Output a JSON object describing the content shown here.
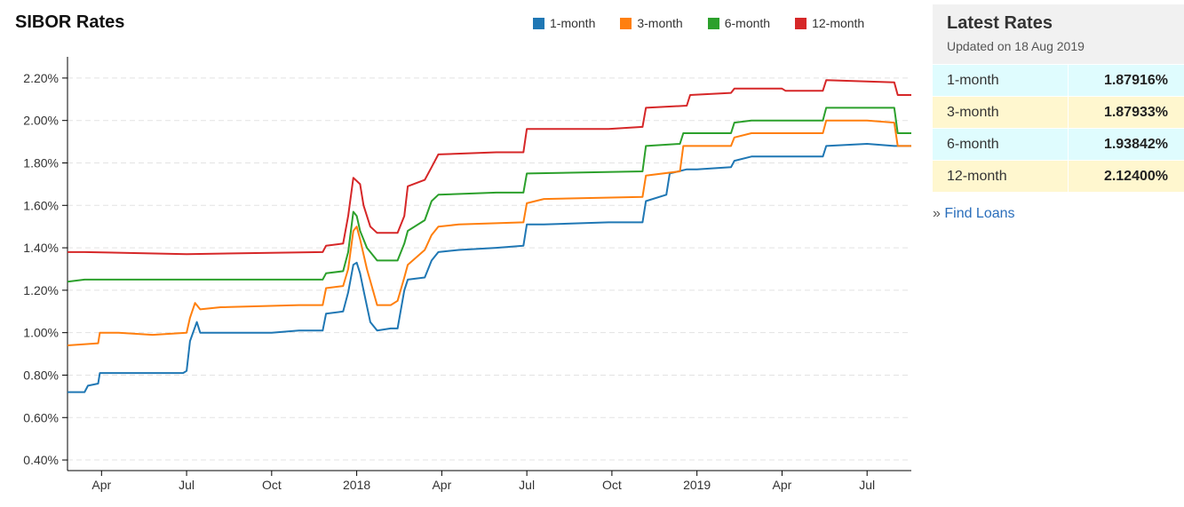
{
  "chart_data": {
    "type": "line",
    "title": "SIBOR Rates",
    "ylim": [
      0.35,
      2.3
    ],
    "yticks": [
      "0.40%",
      "0.60%",
      "0.80%",
      "1.00%",
      "1.20%",
      "1.40%",
      "1.60%",
      "1.80%",
      "2.00%",
      "2.20%"
    ],
    "ytick_values": [
      0.4,
      0.6,
      0.8,
      1.0,
      1.2,
      1.4,
      1.6,
      1.8,
      2.0,
      2.2
    ],
    "xlim": [
      2017.15,
      2019.63
    ],
    "xticks": [
      "Apr",
      "Jul",
      "Oct",
      "2018",
      "Apr",
      "Jul",
      "Oct",
      "2019",
      "Apr",
      "Jul"
    ],
    "xtick_values": [
      2017.25,
      2017.5,
      2017.75,
      2018.0,
      2018.25,
      2018.5,
      2018.75,
      2019.0,
      2019.25,
      2019.5
    ],
    "grid": "horizontal dashed",
    "legend_position": "top",
    "series": [
      {
        "name": "1-month",
        "color": "#1f77b4",
        "points": [
          [
            2017.15,
            0.72
          ],
          [
            2017.2,
            0.72
          ],
          [
            2017.21,
            0.75
          ],
          [
            2017.24,
            0.76
          ],
          [
            2017.245,
            0.81
          ],
          [
            2017.49,
            0.81
          ],
          [
            2017.5,
            0.82
          ],
          [
            2017.51,
            0.96
          ],
          [
            2017.53,
            1.05
          ],
          [
            2017.54,
            1.0
          ],
          [
            2017.75,
            1.0
          ],
          [
            2017.83,
            1.01
          ],
          [
            2017.9,
            1.01
          ],
          [
            2017.91,
            1.09
          ],
          [
            2017.96,
            1.1
          ],
          [
            2017.975,
            1.19
          ],
          [
            2017.99,
            1.32
          ],
          [
            2018.0,
            1.33
          ],
          [
            2018.01,
            1.28
          ],
          [
            2018.02,
            1.2
          ],
          [
            2018.04,
            1.05
          ],
          [
            2018.06,
            1.01
          ],
          [
            2018.1,
            1.02
          ],
          [
            2018.12,
            1.02
          ],
          [
            2018.14,
            1.2
          ],
          [
            2018.15,
            1.25
          ],
          [
            2018.2,
            1.26
          ],
          [
            2018.22,
            1.34
          ],
          [
            2018.24,
            1.38
          ],
          [
            2018.3,
            1.39
          ],
          [
            2018.41,
            1.4
          ],
          [
            2018.49,
            1.41
          ],
          [
            2018.5,
            1.51
          ],
          [
            2018.55,
            1.51
          ],
          [
            2018.74,
            1.52
          ],
          [
            2018.84,
            1.52
          ],
          [
            2018.85,
            1.62
          ],
          [
            2018.91,
            1.65
          ],
          [
            2018.92,
            1.75
          ],
          [
            2018.97,
            1.77
          ],
          [
            2019.0,
            1.77
          ],
          [
            2019.1,
            1.78
          ],
          [
            2019.11,
            1.81
          ],
          [
            2019.16,
            1.83
          ],
          [
            2019.37,
            1.83
          ],
          [
            2019.38,
            1.88
          ],
          [
            2019.5,
            1.89
          ],
          [
            2019.58,
            1.88
          ],
          [
            2019.63,
            1.88
          ]
        ]
      },
      {
        "name": "3-month",
        "color": "#ff7f0e",
        "points": [
          [
            2017.15,
            0.94
          ],
          [
            2017.24,
            0.95
          ],
          [
            2017.245,
            1.0
          ],
          [
            2017.3,
            1.0
          ],
          [
            2017.4,
            0.99
          ],
          [
            2017.5,
            1.0
          ],
          [
            2017.51,
            1.07
          ],
          [
            2017.525,
            1.14
          ],
          [
            2017.54,
            1.11
          ],
          [
            2017.6,
            1.12
          ],
          [
            2017.83,
            1.13
          ],
          [
            2017.9,
            1.13
          ],
          [
            2017.91,
            1.21
          ],
          [
            2017.96,
            1.22
          ],
          [
            2017.975,
            1.3
          ],
          [
            2017.99,
            1.48
          ],
          [
            2018.0,
            1.5
          ],
          [
            2018.01,
            1.44
          ],
          [
            2018.03,
            1.3
          ],
          [
            2018.06,
            1.13
          ],
          [
            2018.1,
            1.13
          ],
          [
            2018.12,
            1.15
          ],
          [
            2018.14,
            1.26
          ],
          [
            2018.15,
            1.32
          ],
          [
            2018.2,
            1.39
          ],
          [
            2018.22,
            1.46
          ],
          [
            2018.24,
            1.5
          ],
          [
            2018.3,
            1.51
          ],
          [
            2018.49,
            1.52
          ],
          [
            2018.5,
            1.61
          ],
          [
            2018.55,
            1.63
          ],
          [
            2018.84,
            1.64
          ],
          [
            2018.85,
            1.74
          ],
          [
            2018.95,
            1.76
          ],
          [
            2018.96,
            1.88
          ],
          [
            2019.1,
            1.88
          ],
          [
            2019.11,
            1.92
          ],
          [
            2019.16,
            1.94
          ],
          [
            2019.37,
            1.94
          ],
          [
            2019.38,
            2.0
          ],
          [
            2019.5,
            2.0
          ],
          [
            2019.58,
            1.99
          ],
          [
            2019.59,
            1.88
          ],
          [
            2019.63,
            1.88
          ]
        ]
      },
      {
        "name": "6-month",
        "color": "#2ca02c",
        "points": [
          [
            2017.15,
            1.24
          ],
          [
            2017.2,
            1.25
          ],
          [
            2017.6,
            1.25
          ],
          [
            2017.9,
            1.25
          ],
          [
            2017.91,
            1.28
          ],
          [
            2017.96,
            1.29
          ],
          [
            2017.975,
            1.38
          ],
          [
            2017.99,
            1.57
          ],
          [
            2018.0,
            1.55
          ],
          [
            2018.01,
            1.48
          ],
          [
            2018.03,
            1.4
          ],
          [
            2018.06,
            1.34
          ],
          [
            2018.12,
            1.34
          ],
          [
            2018.14,
            1.42
          ],
          [
            2018.15,
            1.48
          ],
          [
            2018.2,
            1.53
          ],
          [
            2018.22,
            1.62
          ],
          [
            2018.24,
            1.65
          ],
          [
            2018.41,
            1.66
          ],
          [
            2018.49,
            1.66
          ],
          [
            2018.5,
            1.75
          ],
          [
            2018.84,
            1.76
          ],
          [
            2018.85,
            1.88
          ],
          [
            2018.95,
            1.89
          ],
          [
            2018.96,
            1.94
          ],
          [
            2019.1,
            1.94
          ],
          [
            2019.11,
            1.99
          ],
          [
            2019.16,
            2.0
          ],
          [
            2019.37,
            2.0
          ],
          [
            2019.38,
            2.06
          ],
          [
            2019.58,
            2.06
          ],
          [
            2019.59,
            1.94
          ],
          [
            2019.63,
            1.94
          ]
        ]
      },
      {
        "name": "12-month",
        "color": "#d62728",
        "points": [
          [
            2017.15,
            1.38
          ],
          [
            2017.2,
            1.38
          ],
          [
            2017.5,
            1.37
          ],
          [
            2017.9,
            1.38
          ],
          [
            2017.91,
            1.41
          ],
          [
            2017.96,
            1.42
          ],
          [
            2017.975,
            1.55
          ],
          [
            2017.99,
            1.73
          ],
          [
            2018.01,
            1.7
          ],
          [
            2018.02,
            1.6
          ],
          [
            2018.04,
            1.5
          ],
          [
            2018.06,
            1.47
          ],
          [
            2018.12,
            1.47
          ],
          [
            2018.14,
            1.55
          ],
          [
            2018.15,
            1.69
          ],
          [
            2018.2,
            1.72
          ],
          [
            2018.22,
            1.78
          ],
          [
            2018.24,
            1.84
          ],
          [
            2018.41,
            1.85
          ],
          [
            2018.49,
            1.85
          ],
          [
            2018.5,
            1.96
          ],
          [
            2018.74,
            1.96
          ],
          [
            2018.84,
            1.97
          ],
          [
            2018.85,
            2.06
          ],
          [
            2018.97,
            2.07
          ],
          [
            2018.98,
            2.12
          ],
          [
            2019.1,
            2.13
          ],
          [
            2019.11,
            2.15
          ],
          [
            2019.25,
            2.15
          ],
          [
            2019.26,
            2.14
          ],
          [
            2019.37,
            2.14
          ],
          [
            2019.38,
            2.19
          ],
          [
            2019.58,
            2.18
          ],
          [
            2019.59,
            2.12
          ],
          [
            2019.63,
            2.12
          ]
        ]
      }
    ]
  },
  "panel": {
    "title": "Latest Rates",
    "updated": "Updated on 18 Aug 2019",
    "rates": [
      {
        "name": "1-month",
        "value": "1.87916%"
      },
      {
        "name": "3-month",
        "value": "1.87933%"
      },
      {
        "name": "6-month",
        "value": "1.93842%"
      },
      {
        "name": "12-month",
        "value": "2.12400%"
      }
    ],
    "find_loans_prefix": "»",
    "find_loans_label": "Find Loans"
  }
}
